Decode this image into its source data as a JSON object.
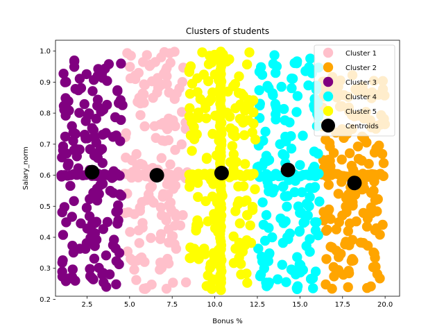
{
  "chart_data": {
    "type": "scatter",
    "title": "Clusters of students",
    "xlabel": "Bonus %",
    "ylabel": "Salary_norm",
    "xlim": [
      0.65,
      20.85
    ],
    "ylim": [
      0.21,
      1.035
    ],
    "xticks": [
      "2.5",
      "5.0",
      "7.5",
      "10.0",
      "12.5",
      "15.0",
      "17.5",
      "20.0"
    ],
    "yticks": [
      "0.2",
      "0.3",
      "0.4",
      "0.5",
      "0.6",
      "0.7",
      "0.8",
      "0.9",
      "1.0"
    ],
    "grid": false,
    "legend_position": "top-right",
    "series": [
      {
        "name": "Cluster 1",
        "color": "#ffc0cb",
        "x_range": [
          4.7,
          8.4
        ],
        "y_range": [
          0.23,
          1.0
        ],
        "band_y": 0.6
      },
      {
        "name": "Cluster 2",
        "color": "#ffa500",
        "x_range": [
          16.3,
          20.0
        ],
        "y_range": [
          0.23,
          0.93
        ],
        "band_y": 0.6
      },
      {
        "name": "Cluster 3",
        "color": "#800080",
        "x_range": [
          1.0,
          4.6
        ],
        "y_range": [
          0.24,
          0.99
        ],
        "band_y": 0.6
      },
      {
        "name": "Cluster 4",
        "color": "#00ffff",
        "x_range": [
          12.5,
          16.2
        ],
        "y_range": [
          0.23,
          0.99
        ],
        "band_y": 0.6
      },
      {
        "name": "Cluster 5",
        "color": "#ffff00",
        "x_range": [
          8.5,
          12.4
        ],
        "y_range": [
          0.23,
          1.0
        ],
        "band_y": 0.6
      }
    ],
    "centroids": {
      "name": "Centroids",
      "color": "#000000",
      "points": [
        {
          "x": 2.8,
          "y": 0.61
        },
        {
          "x": 6.6,
          "y": 0.6
        },
        {
          "x": 10.4,
          "y": 0.607
        },
        {
          "x": 14.3,
          "y": 0.617
        },
        {
          "x": 18.2,
          "y": 0.575
        }
      ]
    }
  }
}
